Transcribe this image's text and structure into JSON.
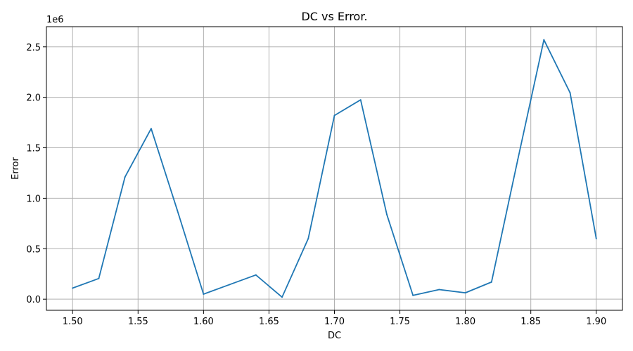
{
  "chart_data": {
    "type": "line",
    "title": "DC vs Error.",
    "xlabel": "DC",
    "ylabel": "Error",
    "y_offset_label": "1e6",
    "y_scale_factor": 1000000,
    "xlim": [
      1.48,
      1.92
    ],
    "ylim": [
      -110000,
      2700000
    ],
    "grid": true,
    "x_ticks": [
      {
        "value": 1.5,
        "label": "1.50"
      },
      {
        "value": 1.55,
        "label": "1.55"
      },
      {
        "value": 1.6,
        "label": "1.60"
      },
      {
        "value": 1.65,
        "label": "1.65"
      },
      {
        "value": 1.7,
        "label": "1.70"
      },
      {
        "value": 1.75,
        "label": "1.75"
      },
      {
        "value": 1.8,
        "label": "1.80"
      },
      {
        "value": 1.85,
        "label": "1.85"
      },
      {
        "value": 1.9,
        "label": "1.90"
      }
    ],
    "y_ticks": [
      {
        "value": 0,
        "label": "0.0"
      },
      {
        "value": 500000,
        "label": "0.5"
      },
      {
        "value": 1000000,
        "label": "1.0"
      },
      {
        "value": 1500000,
        "label": "1.5"
      },
      {
        "value": 2000000,
        "label": "2.0"
      },
      {
        "value": 2500000,
        "label": "2.5"
      }
    ],
    "series": [
      {
        "color": "#1f77b4",
        "x": [
          1.5,
          1.52,
          1.54,
          1.56,
          1.58,
          1.6,
          1.62,
          1.64,
          1.66,
          1.68,
          1.7,
          1.72,
          1.74,
          1.76,
          1.78,
          1.8,
          1.82,
          1.84,
          1.86,
          1.88,
          1.9
        ],
        "y": [
          110000,
          205000,
          1210000,
          1690000,
          880000,
          50000,
          145000,
          240000,
          20000,
          600000,
          1820000,
          1975000,
          840000,
          38000,
          95000,
          63000,
          170000,
          1380000,
          2570000,
          2045000,
          600000
        ]
      }
    ]
  }
}
